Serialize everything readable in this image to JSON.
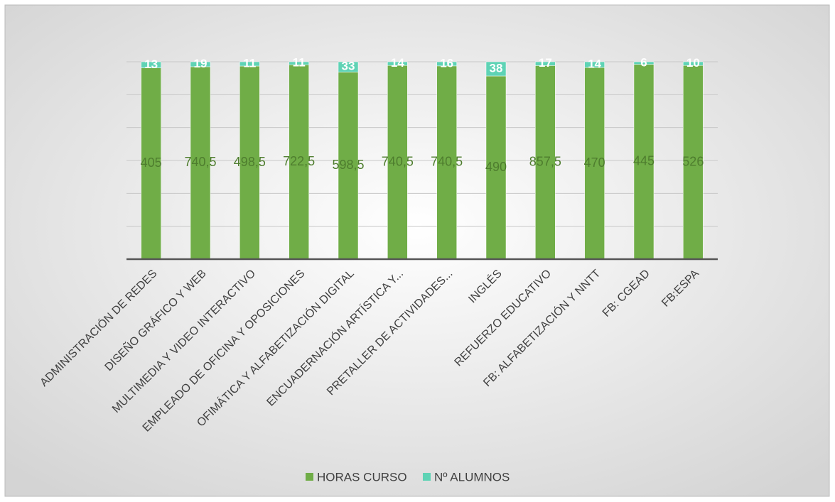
{
  "chart_data": {
    "type": "bar",
    "stacking": "percent",
    "categories": [
      "ADMINISTRACIÓN DE REDES",
      "DISEÑO GRÁFICO Y WEB",
      "MULTIMEDIA Y VIDEO INTERACTIVO",
      "EMPLEADO DE OFICINA Y OPOSICIONES",
      "OFIMÁTICA Y ALFABETIZACIÓN DIGITAL",
      "ENCUADERNACIÓN ARTÍSTICA Y...",
      "PRETALLER DE ACTIVIDADES...",
      "INGLÉS",
      "REFUERZO EDUCATIVO",
      "FB: ALFABETIZACIÓN Y NNTT",
      "FB: CGEAD",
      "FB:ESPA"
    ],
    "series": [
      {
        "name": "HORAS CURSO",
        "color": "#70ad47",
        "values": [
          405,
          740.5,
          498.5,
          722.5,
          598.5,
          740.5,
          740.5,
          490,
          857.5,
          470,
          445,
          526
        ],
        "value_labels": [
          "405",
          "740,5",
          "498,5",
          "722,5",
          "598,5",
          "740,5",
          "740,5",
          "490",
          "857,5",
          "470",
          "445",
          "526"
        ]
      },
      {
        "name": "Nº ALUMNOS",
        "color": "#5fd3b5",
        "values": [
          13,
          19,
          11,
          11,
          33,
          14,
          16,
          38,
          17,
          14,
          6,
          10
        ]
      }
    ],
    "ylim": [
      0,
      100
    ],
    "yticks": [
      0,
      16.7,
      33.3,
      50,
      66.7,
      83.3,
      100
    ],
    "grid": true,
    "legend": "bottom"
  }
}
